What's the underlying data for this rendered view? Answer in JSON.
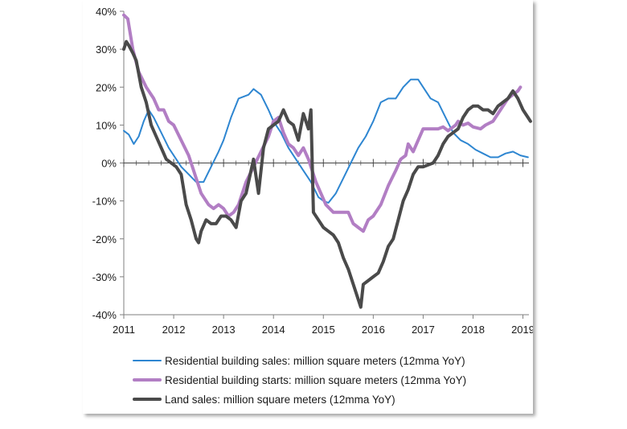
{
  "chart_data": {
    "type": "line",
    "ylim": [
      -40,
      40
    ],
    "xlim": [
      2011,
      2019.2
    ],
    "y_ticks": [
      40,
      30,
      20,
      10,
      0,
      -10,
      -20,
      -30,
      -40
    ],
    "y_tick_labels": [
      "40%",
      "30%",
      "20%",
      "10%",
      "0%",
      "-10%",
      "-20%",
      "-30%",
      "-40%"
    ],
    "x_ticks": [
      2011,
      2012,
      2013,
      2014,
      2015,
      2016,
      2017,
      2018,
      2019
    ],
    "x_tick_labels": [
      "2011",
      "2012",
      "2013",
      "2014",
      "2015",
      "2016",
      "2017",
      "2018",
      "2019"
    ],
    "grid": false,
    "legend_position": "bottom",
    "series": [
      {
        "name": "Residential building sales: million square meters (12mma YoY)",
        "color": "#2e86d1",
        "values": [
          [
            2011.0,
            8.5
          ],
          [
            2011.1,
            7.5
          ],
          [
            2011.2,
            5
          ],
          [
            2011.3,
            7
          ],
          [
            2011.4,
            11
          ],
          [
            2011.5,
            14
          ],
          [
            2011.6,
            12
          ],
          [
            2011.75,
            8
          ],
          [
            2011.9,
            4
          ],
          [
            2012.0,
            2
          ],
          [
            2012.15,
            -1
          ],
          [
            2012.3,
            -3
          ],
          [
            2012.45,
            -5
          ],
          [
            2012.6,
            -5
          ],
          [
            2012.75,
            -1
          ],
          [
            2012.9,
            3
          ],
          [
            2013.0,
            6
          ],
          [
            2013.15,
            12
          ],
          [
            2013.3,
            17
          ],
          [
            2013.5,
            18
          ],
          [
            2013.6,
            19.5
          ],
          [
            2013.75,
            18
          ],
          [
            2013.9,
            14
          ],
          [
            2014.0,
            11
          ],
          [
            2014.15,
            8
          ],
          [
            2014.3,
            4
          ],
          [
            2014.45,
            1
          ],
          [
            2014.6,
            -2
          ],
          [
            2014.75,
            -5
          ],
          [
            2014.9,
            -9
          ],
          [
            2015.0,
            -10
          ],
          [
            2015.1,
            -10.5
          ],
          [
            2015.25,
            -8
          ],
          [
            2015.4,
            -4
          ],
          [
            2015.55,
            0
          ],
          [
            2015.7,
            4
          ],
          [
            2015.85,
            7
          ],
          [
            2016.0,
            11
          ],
          [
            2016.15,
            16
          ],
          [
            2016.3,
            17
          ],
          [
            2016.45,
            17
          ],
          [
            2016.6,
            20
          ],
          [
            2016.75,
            22
          ],
          [
            2016.9,
            22
          ],
          [
            2017.0,
            20
          ],
          [
            2017.15,
            17
          ],
          [
            2017.3,
            16
          ],
          [
            2017.45,
            12
          ],
          [
            2017.6,
            8
          ],
          [
            2017.75,
            6
          ],
          [
            2017.9,
            5
          ],
          [
            2018.05,
            3.5
          ],
          [
            2018.2,
            2.5
          ],
          [
            2018.35,
            1.5
          ],
          [
            2018.5,
            1.5
          ],
          [
            2018.65,
            2.5
          ],
          [
            2018.8,
            3
          ],
          [
            2018.95,
            2
          ],
          [
            2019.1,
            1.5
          ]
        ]
      },
      {
        "name": "Residential building starts: million square meters (12mma YoY)",
        "color": "#b27ec4",
        "values": [
          [
            2011.0,
            39
          ],
          [
            2011.08,
            38
          ],
          [
            2011.18,
            30
          ],
          [
            2011.3,
            24
          ],
          [
            2011.45,
            20
          ],
          [
            2011.6,
            17
          ],
          [
            2011.7,
            14
          ],
          [
            2011.8,
            14
          ],
          [
            2011.9,
            11
          ],
          [
            2012.0,
            10
          ],
          [
            2012.15,
            6
          ],
          [
            2012.3,
            2
          ],
          [
            2012.45,
            -4
          ],
          [
            2012.55,
            -8
          ],
          [
            2012.7,
            -11
          ],
          [
            2012.8,
            -12
          ],
          [
            2012.9,
            -11
          ],
          [
            2013.0,
            -12
          ],
          [
            2013.1,
            -14
          ],
          [
            2013.2,
            -13
          ],
          [
            2013.3,
            -11
          ],
          [
            2013.45,
            -5
          ],
          [
            2013.6,
            -1
          ],
          [
            2013.75,
            3
          ],
          [
            2013.9,
            7
          ],
          [
            2014.0,
            11
          ],
          [
            2014.1,
            12
          ],
          [
            2014.2,
            8
          ],
          [
            2014.3,
            5
          ],
          [
            2014.4,
            4
          ],
          [
            2014.5,
            2
          ],
          [
            2014.6,
            4
          ],
          [
            2014.7,
            1
          ],
          [
            2014.8,
            -3
          ],
          [
            2014.85,
            -5
          ],
          [
            2014.95,
            -8
          ],
          [
            2015.05,
            -11
          ],
          [
            2015.2,
            -13
          ],
          [
            2015.4,
            -13
          ],
          [
            2015.5,
            -13
          ],
          [
            2015.6,
            -16
          ],
          [
            2015.7,
            -17
          ],
          [
            2015.8,
            -18
          ],
          [
            2015.9,
            -15
          ],
          [
            2016.0,
            -14
          ],
          [
            2016.15,
            -11
          ],
          [
            2016.3,
            -6
          ],
          [
            2016.45,
            -2
          ],
          [
            2016.55,
            1
          ],
          [
            2016.65,
            2
          ],
          [
            2016.7,
            5
          ],
          [
            2016.8,
            3
          ],
          [
            2016.9,
            6
          ],
          [
            2017.0,
            9
          ],
          [
            2017.15,
            9
          ],
          [
            2017.3,
            9
          ],
          [
            2017.4,
            9.5
          ],
          [
            2017.5,
            8.5
          ],
          [
            2017.6,
            9.5
          ],
          [
            2017.65,
            10
          ],
          [
            2017.7,
            11
          ],
          [
            2017.8,
            10
          ],
          [
            2017.9,
            10.5
          ],
          [
            2018.0,
            9.5
          ],
          [
            2018.15,
            9
          ],
          [
            2018.25,
            10
          ],
          [
            2018.4,
            11
          ],
          [
            2018.55,
            14
          ],
          [
            2018.7,
            17
          ],
          [
            2018.8,
            18
          ],
          [
            2018.9,
            19
          ],
          [
            2018.95,
            20
          ]
        ]
      },
      {
        "name": "Land sales: million square meters (12mma YoY)",
        "color": "#4a4a4a",
        "values": [
          [
            2011.0,
            30
          ],
          [
            2011.05,
            32
          ],
          [
            2011.1,
            31
          ],
          [
            2011.18,
            29
          ],
          [
            2011.25,
            27
          ],
          [
            2011.35,
            20
          ],
          [
            2011.45,
            16
          ],
          [
            2011.55,
            10
          ],
          [
            2011.65,
            7
          ],
          [
            2011.75,
            4
          ],
          [
            2011.85,
            1
          ],
          [
            2011.95,
            0
          ],
          [
            2012.05,
            -1
          ],
          [
            2012.15,
            -3
          ],
          [
            2012.25,
            -11
          ],
          [
            2012.35,
            -15
          ],
          [
            2012.45,
            -20
          ],
          [
            2012.5,
            -21
          ],
          [
            2012.55,
            -18
          ],
          [
            2012.65,
            -15
          ],
          [
            2012.75,
            -16
          ],
          [
            2012.85,
            -16
          ],
          [
            2012.95,
            -14
          ],
          [
            2013.05,
            -14
          ],
          [
            2013.15,
            -15
          ],
          [
            2013.25,
            -17
          ],
          [
            2013.35,
            -10
          ],
          [
            2013.45,
            -8
          ],
          [
            2013.55,
            -2
          ],
          [
            2013.6,
            1
          ],
          [
            2013.7,
            -8
          ],
          [
            2013.8,
            4
          ],
          [
            2013.9,
            9
          ],
          [
            2014.0,
            10
          ],
          [
            2014.1,
            11
          ],
          [
            2014.2,
            14
          ],
          [
            2014.3,
            11
          ],
          [
            2014.4,
            10
          ],
          [
            2014.5,
            6
          ],
          [
            2014.6,
            13
          ],
          [
            2014.7,
            9
          ],
          [
            2014.75,
            14
          ],
          [
            2014.8,
            -13
          ],
          [
            2014.9,
            -15
          ],
          [
            2015.0,
            -17
          ],
          [
            2015.1,
            -18
          ],
          [
            2015.2,
            -19
          ],
          [
            2015.3,
            -21
          ],
          [
            2015.4,
            -25
          ],
          [
            2015.5,
            -28
          ],
          [
            2015.6,
            -32
          ],
          [
            2015.7,
            -36
          ],
          [
            2015.75,
            -38
          ],
          [
            2015.8,
            -32
          ],
          [
            2015.9,
            -31
          ],
          [
            2016.0,
            -30
          ],
          [
            2016.1,
            -29
          ],
          [
            2016.2,
            -26
          ],
          [
            2016.3,
            -22
          ],
          [
            2016.4,
            -20
          ],
          [
            2016.5,
            -15
          ],
          [
            2016.6,
            -10
          ],
          [
            2016.7,
            -7
          ],
          [
            2016.8,
            -3
          ],
          [
            2016.9,
            -1
          ],
          [
            2017.0,
            -1
          ],
          [
            2017.1,
            -0.5
          ],
          [
            2017.2,
            0
          ],
          [
            2017.3,
            2
          ],
          [
            2017.4,
            5
          ],
          [
            2017.5,
            7
          ],
          [
            2017.6,
            8
          ],
          [
            2017.7,
            9
          ],
          [
            2017.8,
            12
          ],
          [
            2017.9,
            14
          ],
          [
            2018.0,
            15
          ],
          [
            2018.1,
            15
          ],
          [
            2018.2,
            14
          ],
          [
            2018.3,
            14
          ],
          [
            2018.4,
            13
          ],
          [
            2018.5,
            15
          ],
          [
            2018.6,
            16
          ],
          [
            2018.7,
            17
          ],
          [
            2018.8,
            19
          ],
          [
            2018.9,
            17
          ],
          [
            2019.0,
            14
          ],
          [
            2019.1,
            12
          ],
          [
            2019.15,
            11
          ]
        ]
      }
    ]
  }
}
